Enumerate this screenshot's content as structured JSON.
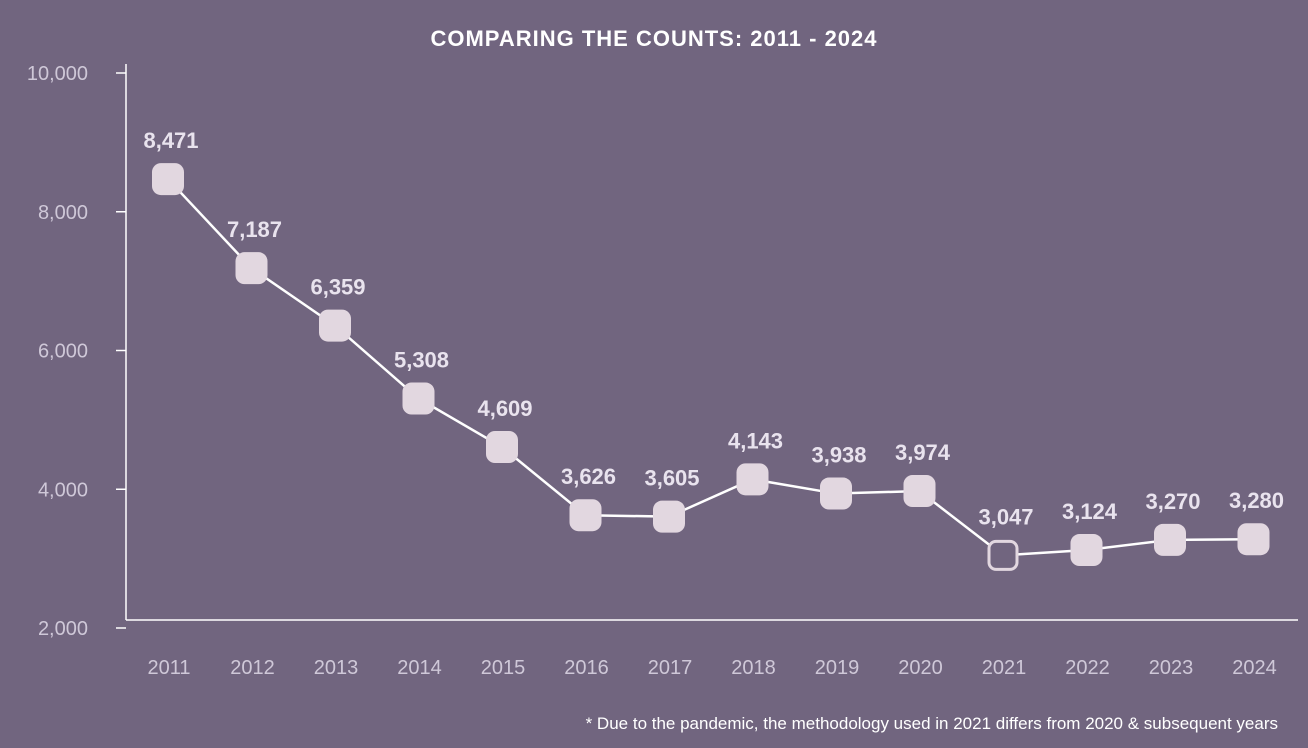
{
  "chart_data": {
    "type": "line",
    "title": "COMPARING THE COUNTS: 2011 - 2024",
    "categories": [
      "2011",
      "2012",
      "2013",
      "2014",
      "2015",
      "2016",
      "2017",
      "2018",
      "2019",
      "2020",
      "2021",
      "2022",
      "2023",
      "2024"
    ],
    "values": [
      8471,
      7187,
      6359,
      5308,
      4609,
      3626,
      3605,
      4143,
      3938,
      3974,
      3047,
      3124,
      3270,
      3280
    ],
    "data_labels": [
      "8,471",
      "7,187",
      "6,359",
      "5,308",
      "4,609",
      "3,626",
      "3,605",
      "4,143",
      "3,938",
      "3,974",
      "3,047",
      "3,124",
      "3,270",
      "3,280"
    ],
    "ylim": [
      2000,
      10000
    ],
    "yticks": [
      2000,
      4000,
      6000,
      8000,
      10000
    ],
    "ytick_labels": [
      "2,000",
      "4,000",
      "6,000",
      "8,000",
      "10,000"
    ],
    "hollow_marker_category": "2021",
    "xlabel": "",
    "ylabel": "",
    "colors": {
      "background": "#71657f",
      "line": "#ffffff",
      "marker": "#e2d7e0",
      "marker_hollow_stroke": "#e2d7e0",
      "labels": "#e9e3ee"
    }
  },
  "footnote": "* Due to the pandemic, the methodology used in 2021 differs from 2020 & subsequent years"
}
